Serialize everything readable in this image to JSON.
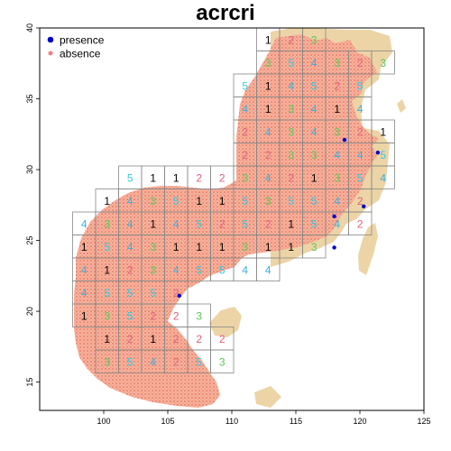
{
  "title": "acrcri",
  "legend": [
    {
      "label": "presence",
      "color": "#0000cc"
    },
    {
      "label": "absence",
      "color": "#f08080"
    }
  ],
  "colors": {
    "land": "#ecd4a6",
    "absence_points": "#f59a86",
    "presence_points": "#0000cc",
    "grid_line": "#888888",
    "fold_1": "#000000",
    "fold_2": "#e0607e",
    "fold_3": "#5ac95a",
    "fold_4": "#3aaee0",
    "fold_5": "#39c6e0"
  },
  "axes": {
    "xlim": [
      95,
      125
    ],
    "ylim": [
      13,
      40
    ],
    "xticks": [
      100,
      105,
      110,
      115,
      120,
      125
    ],
    "yticks": [
      15,
      20,
      25,
      30,
      35,
      40
    ]
  },
  "fold_blocks": [
    {
      "row": 0,
      "col": 7,
      "fold": "1"
    },
    {
      "row": 0,
      "col": 8,
      "fold": "2"
    },
    {
      "row": 0,
      "col": 9,
      "fold": "3"
    },
    {
      "row": 1,
      "col": 7,
      "fold": "3"
    },
    {
      "row": 1,
      "col": 8,
      "fold": "5"
    },
    {
      "row": 1,
      "col": 9,
      "fold": "4"
    },
    {
      "row": 1,
      "col": 10,
      "fold": "3"
    },
    {
      "row": 1,
      "col": 11,
      "fold": "2"
    },
    {
      "row": 1,
      "col": 12,
      "fold": "3"
    },
    {
      "row": 2,
      "col": 6,
      "fold": "5"
    },
    {
      "row": 2,
      "col": 7,
      "fold": "1"
    },
    {
      "row": 2,
      "col": 8,
      "fold": "4"
    },
    {
      "row": 2,
      "col": 9,
      "fold": "5"
    },
    {
      "row": 2,
      "col": 10,
      "fold": "2"
    },
    {
      "row": 2,
      "col": 11,
      "fold": "5"
    },
    {
      "row": 3,
      "col": 6,
      "fold": "4"
    },
    {
      "row": 3,
      "col": 7,
      "fold": "1"
    },
    {
      "row": 3,
      "col": 8,
      "fold": "3"
    },
    {
      "row": 3,
      "col": 9,
      "fold": "4"
    },
    {
      "row": 3,
      "col": 10,
      "fold": "1"
    },
    {
      "row": 3,
      "col": 11,
      "fold": "4"
    },
    {
      "row": 4,
      "col": 6,
      "fold": "2"
    },
    {
      "row": 4,
      "col": 7,
      "fold": "4"
    },
    {
      "row": 4,
      "col": 8,
      "fold": "3"
    },
    {
      "row": 4,
      "col": 9,
      "fold": "4"
    },
    {
      "row": 4,
      "col": 10,
      "fold": "3"
    },
    {
      "row": 4,
      "col": 11,
      "fold": "2"
    },
    {
      "row": 4,
      "col": 12,
      "fold": "1"
    },
    {
      "row": 5,
      "col": 6,
      "fold": "2"
    },
    {
      "row": 5,
      "col": 7,
      "fold": "2"
    },
    {
      "row": 5,
      "col": 8,
      "fold": "3"
    },
    {
      "row": 5,
      "col": 9,
      "fold": "3"
    },
    {
      "row": 5,
      "col": 10,
      "fold": "4"
    },
    {
      "row": 5,
      "col": 11,
      "fold": "4"
    },
    {
      "row": 5,
      "col": 12,
      "fold": "5"
    },
    {
      "row": 6,
      "col": 1,
      "fold": "5"
    },
    {
      "row": 6,
      "col": 2,
      "fold": "1"
    },
    {
      "row": 6,
      "col": 3,
      "fold": "1"
    },
    {
      "row": 6,
      "col": 4,
      "fold": "2"
    },
    {
      "row": 6,
      "col": 5,
      "fold": "2"
    },
    {
      "row": 6,
      "col": 6,
      "fold": "3"
    },
    {
      "row": 6,
      "col": 7,
      "fold": "4"
    },
    {
      "row": 6,
      "col": 8,
      "fold": "2"
    },
    {
      "row": 6,
      "col": 9,
      "fold": "1"
    },
    {
      "row": 6,
      "col": 10,
      "fold": "3"
    },
    {
      "row": 6,
      "col": 11,
      "fold": "5"
    },
    {
      "row": 6,
      "col": 12,
      "fold": "4"
    },
    {
      "row": 7,
      "col": 0,
      "fold": "1"
    },
    {
      "row": 7,
      "col": 1,
      "fold": "4"
    },
    {
      "row": 7,
      "col": 2,
      "fold": "3"
    },
    {
      "row": 7,
      "col": 3,
      "fold": "5"
    },
    {
      "row": 7,
      "col": 4,
      "fold": "1"
    },
    {
      "row": 7,
      "col": 5,
      "fold": "1"
    },
    {
      "row": 7,
      "col": 6,
      "fold": "5"
    },
    {
      "row": 7,
      "col": 7,
      "fold": "3"
    },
    {
      "row": 7,
      "col": 8,
      "fold": "5"
    },
    {
      "row": 7,
      "col": 9,
      "fold": "5"
    },
    {
      "row": 7,
      "col": 10,
      "fold": "4"
    },
    {
      "row": 7,
      "col": 11,
      "fold": "2"
    },
    {
      "row": 8,
      "col": -1,
      "fold": "4"
    },
    {
      "row": 8,
      "col": 0,
      "fold": "3"
    },
    {
      "row": 8,
      "col": 1,
      "fold": "4"
    },
    {
      "row": 8,
      "col": 2,
      "fold": "1"
    },
    {
      "row": 8,
      "col": 3,
      "fold": "4"
    },
    {
      "row": 8,
      "col": 4,
      "fold": "5"
    },
    {
      "row": 8,
      "col": 5,
      "fold": "2"
    },
    {
      "row": 8,
      "col": 6,
      "fold": "5"
    },
    {
      "row": 8,
      "col": 7,
      "fold": "2"
    },
    {
      "row": 8,
      "col": 8,
      "fold": "1"
    },
    {
      "row": 8,
      "col": 9,
      "fold": "5"
    },
    {
      "row": 8,
      "col": 10,
      "fold": "4"
    },
    {
      "row": 8,
      "col": 11,
      "fold": "2"
    },
    {
      "row": 9,
      "col": -1,
      "fold": "1"
    },
    {
      "row": 9,
      "col": 0,
      "fold": "5"
    },
    {
      "row": 9,
      "col": 1,
      "fold": "4"
    },
    {
      "row": 9,
      "col": 2,
      "fold": "3"
    },
    {
      "row": 9,
      "col": 3,
      "fold": "1"
    },
    {
      "row": 9,
      "col": 4,
      "fold": "1"
    },
    {
      "row": 9,
      "col": 5,
      "fold": "1"
    },
    {
      "row": 9,
      "col": 6,
      "fold": "3"
    },
    {
      "row": 9,
      "col": 7,
      "fold": "1"
    },
    {
      "row": 9,
      "col": 8,
      "fold": "1"
    },
    {
      "row": 9,
      "col": 9,
      "fold": "3"
    },
    {
      "row": 10,
      "col": -1,
      "fold": "4"
    },
    {
      "row": 10,
      "col": 0,
      "fold": "1"
    },
    {
      "row": 10,
      "col": 1,
      "fold": "2"
    },
    {
      "row": 10,
      "col": 2,
      "fold": "3"
    },
    {
      "row": 10,
      "col": 3,
      "fold": "4"
    },
    {
      "row": 10,
      "col": 4,
      "fold": "5"
    },
    {
      "row": 10,
      "col": 5,
      "fold": "5"
    },
    {
      "row": 10,
      "col": 6,
      "fold": "4"
    },
    {
      "row": 10,
      "col": 7,
      "fold": "4"
    },
    {
      "row": 11,
      "col": -1,
      "fold": "4"
    },
    {
      "row": 11,
      "col": 0,
      "fold": "5"
    },
    {
      "row": 11,
      "col": 1,
      "fold": "5"
    },
    {
      "row": 11,
      "col": 2,
      "fold": "5"
    },
    {
      "row": 11,
      "col": 3,
      "fold": "2"
    },
    {
      "row": 12,
      "col": -1,
      "fold": "1"
    },
    {
      "row": 12,
      "col": 0,
      "fold": "3"
    },
    {
      "row": 12,
      "col": 1,
      "fold": "5"
    },
    {
      "row": 12,
      "col": 2,
      "fold": "2"
    },
    {
      "row": 12,
      "col": 3,
      "fold": "2"
    },
    {
      "row": 12,
      "col": 4,
      "fold": "3"
    },
    {
      "row": 13,
      "col": 0,
      "fold": "1"
    },
    {
      "row": 13,
      "col": 1,
      "fold": "2"
    },
    {
      "row": 13,
      "col": 2,
      "fold": "1"
    },
    {
      "row": 13,
      "col": 3,
      "fold": "2"
    },
    {
      "row": 13,
      "col": 4,
      "fold": "2"
    },
    {
      "row": 13,
      "col": 5,
      "fold": "2"
    },
    {
      "row": 14,
      "col": 0,
      "fold": "3"
    },
    {
      "row": 14,
      "col": 1,
      "fold": "5"
    },
    {
      "row": 14,
      "col": 2,
      "fold": "4"
    },
    {
      "row": 14,
      "col": 3,
      "fold": "2"
    },
    {
      "row": 14,
      "col": 4,
      "fold": "5"
    },
    {
      "row": 14,
      "col": 5,
      "fold": "3"
    }
  ],
  "presence_points": [
    {
      "lon": 118.8,
      "lat": 32.1
    },
    {
      "lon": 121.4,
      "lat": 31.2
    },
    {
      "lon": 118.0,
      "lat": 26.7
    },
    {
      "lon": 120.3,
      "lat": 27.4
    },
    {
      "lon": 105.9,
      "lat": 21.1
    },
    {
      "lon": 118.0,
      "lat": 24.5
    }
  ]
}
